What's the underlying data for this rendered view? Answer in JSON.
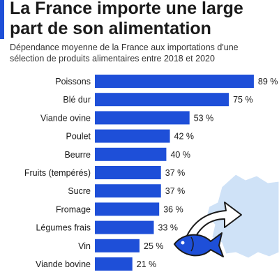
{
  "header": {
    "title_line1": "La France importe une large",
    "title_line2": "part de son alimentation",
    "subtitle_line1": "Dépendance moyenne de la France aux importations d'une",
    "subtitle_line2": "sélection de produits alimentaires entre 2018 et 2020"
  },
  "colors": {
    "bar": "#1e4fd8",
    "accent": "#1e4fd8",
    "map": "#cfe2f7",
    "fish": "#1e4fd8"
  },
  "illustration": {
    "icons": [
      "france-map-icon",
      "import-arrow-icon",
      "fish-icon"
    ]
  },
  "chart_data": {
    "type": "bar",
    "orientation": "horizontal",
    "title": "La France importe une large part de son alimentation",
    "unit": "%",
    "xlim": [
      0,
      100
    ],
    "grid": false,
    "categories": [
      "Poissons",
      "Blé dur",
      "Viande ovine",
      "Poulet",
      "Beurre",
      "Fruits (tempérés)",
      "Sucre",
      "Fromage",
      "Légumes frais",
      "Vin",
      "Viande bovine"
    ],
    "values": [
      89,
      75,
      53,
      42,
      40,
      37,
      37,
      36,
      33,
      25,
      21
    ],
    "labels": [
      "89 %",
      "75 %",
      "53 %",
      "42 %",
      "40 %",
      "37 %",
      "37 %",
      "36 %",
      "33 %",
      "25 %",
      "21 %"
    ]
  }
}
